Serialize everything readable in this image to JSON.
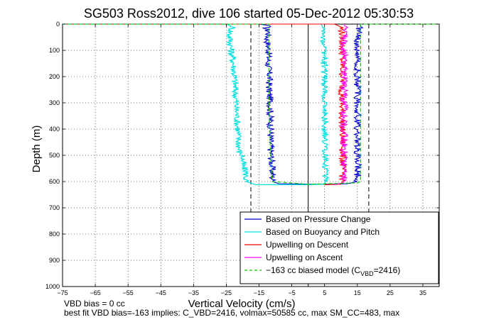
{
  "chart_data": {
    "type": "line",
    "title": "SG503 Ross2012, dive 106 started 05-Dec-2012 05:30:53",
    "xlabel": "Vertical Velocity (cm/s)",
    "ylabel": "Depth (m)",
    "xlim": [
      -75,
      40
    ],
    "ylim": [
      0,
      1000
    ],
    "y_reversed": true,
    "grid": true,
    "legend_position": "bottom-right",
    "x_ticks": [
      -75,
      -65,
      -55,
      -45,
      -35,
      -25,
      -15,
      -5,
      5,
      15,
      25,
      35
    ],
    "y_ticks": [
      0,
      100,
      200,
      300,
      400,
      500,
      600,
      700,
      800,
      900,
      1000
    ],
    "reference_lines": {
      "solid_x": 0,
      "dashed_x": [
        -17.5,
        18.5
      ]
    },
    "series": [
      {
        "name": "Based on Pressure Change",
        "color": "#0000cc",
        "style": "solid",
        "points": [
          [
            -75,
            0
          ],
          [
            -15,
            0
          ],
          [
            -12,
            5
          ],
          [
            -13,
            15
          ],
          [
            -12,
            30
          ],
          [
            -12.5,
            60
          ],
          [
            -12,
            100
          ],
          [
            -12.2,
            150
          ],
          [
            -11.8,
            200
          ],
          [
            -12,
            250
          ],
          [
            -11.5,
            300
          ],
          [
            -11.6,
            350
          ],
          [
            -11.4,
            400
          ],
          [
            -11.5,
            450
          ],
          [
            -11.3,
            500
          ],
          [
            -11,
            550
          ],
          [
            -10.8,
            600
          ],
          [
            -9,
            608
          ],
          [
            0,
            610
          ],
          [
            8,
            610
          ],
          [
            12,
            608
          ],
          [
            15,
            600
          ],
          [
            15.2,
            550
          ],
          [
            15,
            500
          ],
          [
            15.1,
            450
          ],
          [
            15,
            400
          ],
          [
            15.2,
            350
          ],
          [
            15,
            300
          ],
          [
            15.1,
            250
          ],
          [
            15,
            200
          ],
          [
            15.2,
            150
          ],
          [
            15,
            100
          ],
          [
            15,
            50
          ],
          [
            15.5,
            20
          ],
          [
            16,
            5
          ],
          [
            16,
            0
          ]
        ]
      },
      {
        "name": "Based on Buoyancy and Pitch",
        "color": "#00e0e0",
        "style": "solid",
        "points": [
          [
            -75,
            0
          ],
          [
            -25,
            0
          ],
          [
            -23,
            10
          ],
          [
            -24,
            40
          ],
          [
            -23.5,
            100
          ],
          [
            -22.8,
            150
          ],
          [
            -22.5,
            200
          ],
          [
            -22,
            300
          ],
          [
            -21.5,
            400
          ],
          [
            -21,
            490
          ],
          [
            -20,
            500
          ],
          [
            -20,
            540
          ],
          [
            -19,
            560
          ],
          [
            -19,
            600
          ],
          [
            -16,
            612
          ],
          [
            0,
            612
          ],
          [
            5,
            610
          ],
          [
            5.2,
            600
          ],
          [
            5.3,
            500
          ],
          [
            5.2,
            400
          ],
          [
            5,
            300
          ],
          [
            5,
            200
          ],
          [
            4.8,
            100
          ],
          [
            4.5,
            50
          ],
          [
            4.5,
            20
          ],
          [
            4.2,
            5
          ],
          [
            4,
            0
          ]
        ]
      },
      {
        "name": "Upwelling on Descent",
        "color": "#ff0000",
        "style": "solid",
        "points": [
          [
            -75,
            0
          ],
          [
            8,
            0
          ],
          [
            10,
            10
          ],
          [
            10.5,
            50
          ],
          [
            10.3,
            100
          ],
          [
            10.5,
            200
          ],
          [
            10.2,
            300
          ],
          [
            10.4,
            400
          ],
          [
            10.6,
            500
          ],
          [
            10.5,
            600
          ],
          [
            10,
            610
          ],
          [
            5,
            612
          ]
        ]
      },
      {
        "name": "Upwelling on Ascent",
        "color": "#ff00ff",
        "style": "solid",
        "points": [
          [
            8,
            612
          ],
          [
            10.5,
            605
          ],
          [
            11,
            600
          ],
          [
            11.2,
            550
          ],
          [
            11,
            500
          ],
          [
            11.1,
            450
          ],
          [
            10.9,
            400
          ],
          [
            11,
            350
          ],
          [
            11.2,
            300
          ],
          [
            11,
            250
          ],
          [
            11,
            200
          ],
          [
            11.1,
            150
          ],
          [
            11,
            100
          ],
          [
            11,
            50
          ],
          [
            11.2,
            10
          ],
          [
            11,
            0
          ]
        ]
      },
      {
        "name": "-163 cc biased model (C_VBD=2416)",
        "color": "#00cc00",
        "style": "dashed",
        "points": [
          [
            -75,
            0
          ],
          [
            -12,
            0
          ],
          [
            -12,
            20
          ],
          [
            -12,
            100
          ],
          [
            -12,
            300
          ],
          [
            -11.5,
            500
          ],
          [
            -11,
            600
          ],
          [
            0,
            610
          ],
          [
            15,
            605
          ],
          [
            16,
            600
          ],
          [
            16,
            400
          ],
          [
            16,
            200
          ],
          [
            16,
            20
          ],
          [
            16,
            0
          ],
          [
            40,
            0
          ]
        ]
      }
    ]
  },
  "legend": [
    {
      "label": "Based on Pressure Change",
      "color": "#0000cc",
      "style": "solid"
    },
    {
      "label": "Based on Buoyancy and Pitch",
      "color": "#00e0e0",
      "style": "solid"
    },
    {
      "label": "Upwelling on Descent",
      "color": "#ff0000",
      "style": "solid"
    },
    {
      "label": "Upwelling on Ascent",
      "color": "#ff00ff",
      "style": "solid"
    },
    {
      "label_prefix": "−163 cc biased model (C",
      "label_sub": "VBD",
      "label_suffix": "=2416)",
      "color": "#00cc00",
      "style": "dashed"
    }
  ],
  "footer": {
    "line1": "VBD bias = 0 cc",
    "line2": "best fit VBD bias=-163 implies: C_VBD=2416, volmax=50585 cc, max SM_CC=483, max"
  }
}
